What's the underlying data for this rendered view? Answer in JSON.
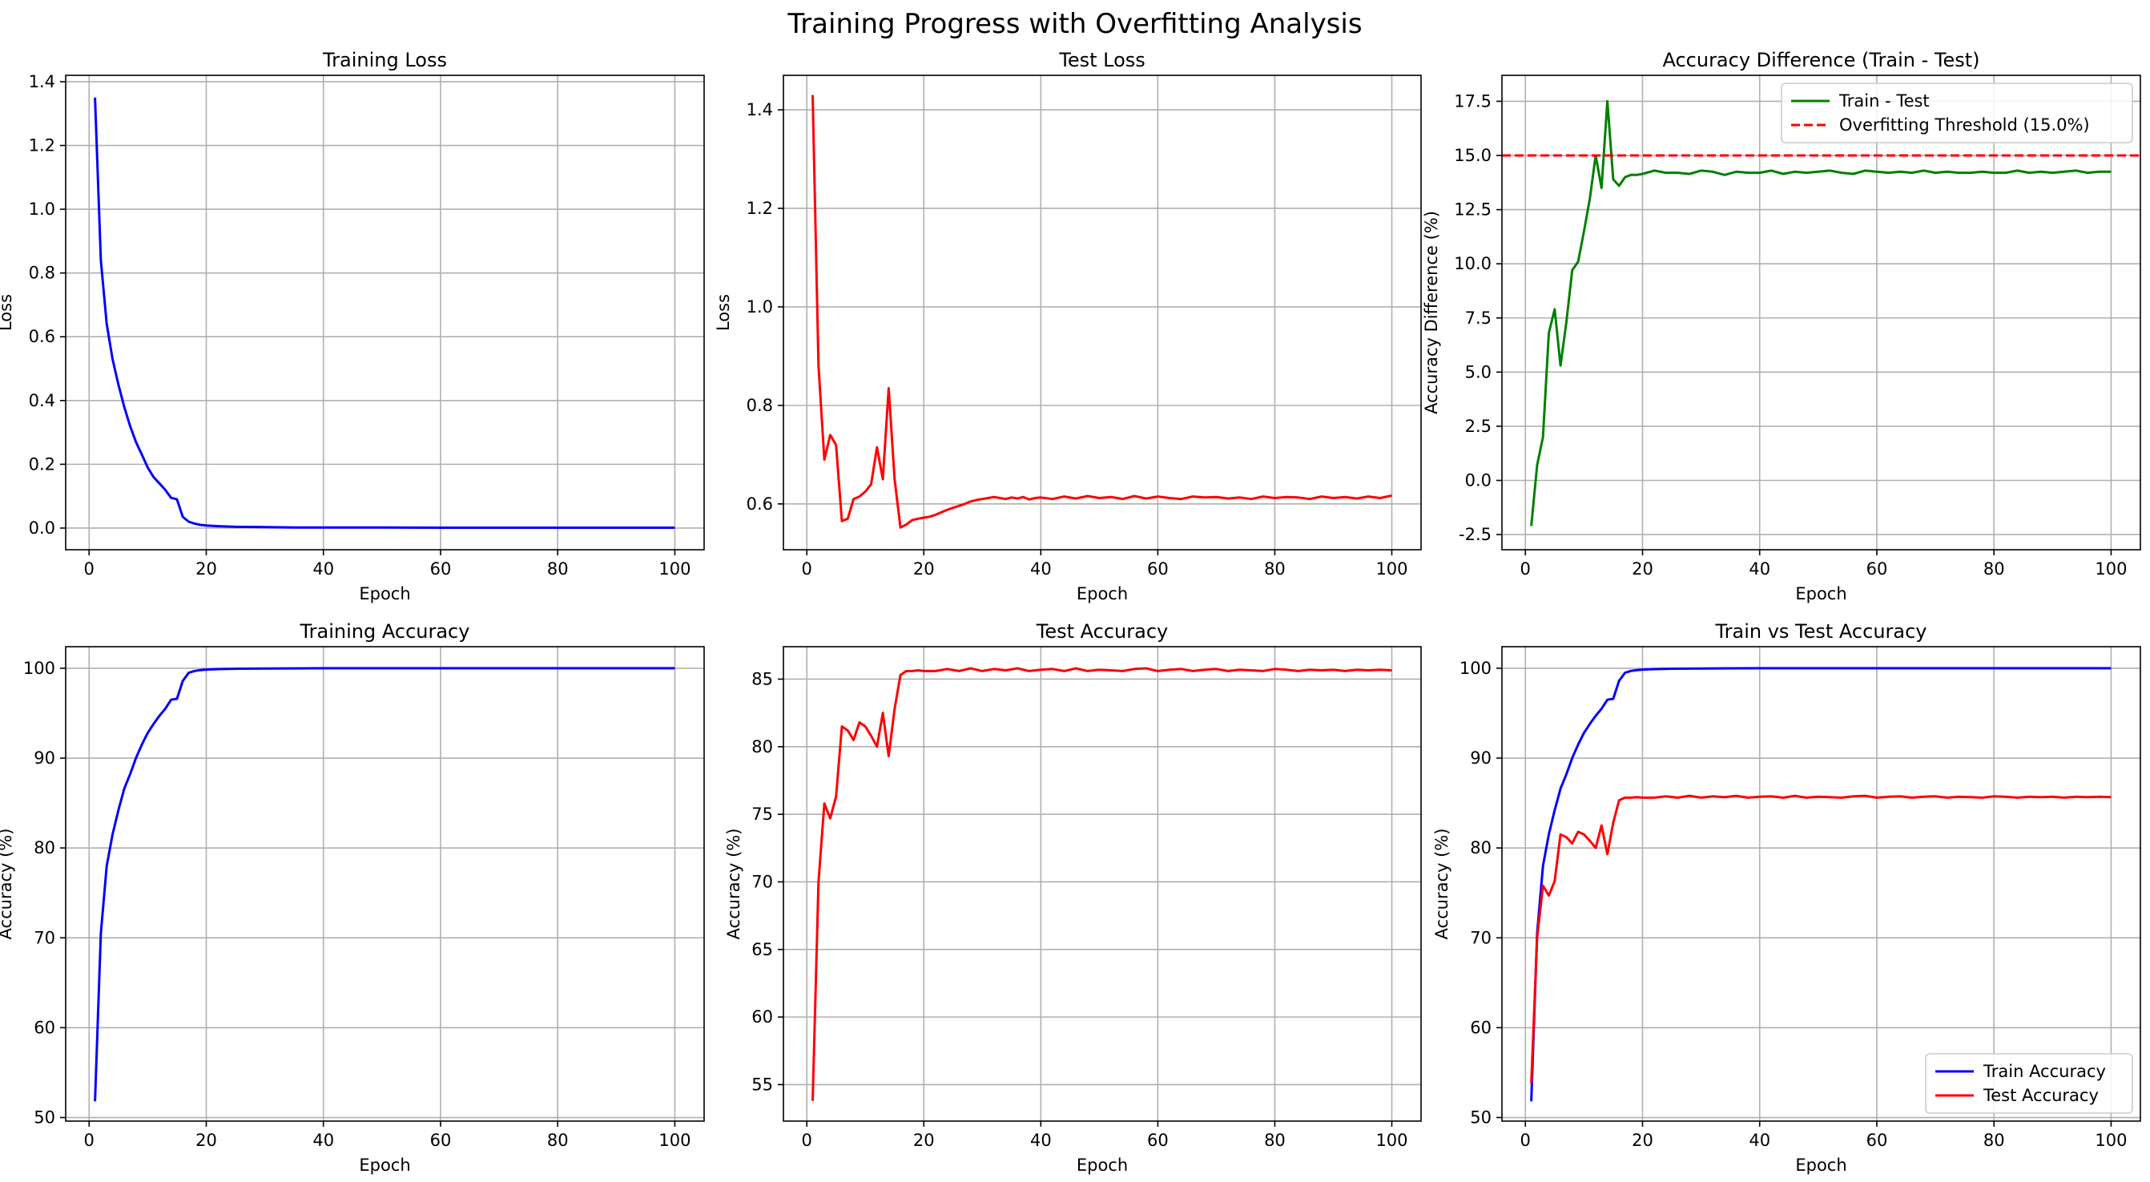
{
  "figure": {
    "title": "Training Progress with Overfitting Analysis"
  },
  "chart_data": [
    {
      "type": "line",
      "title": "Training Loss",
      "xlabel": "Epoch",
      "ylabel": "Loss",
      "xlim": [
        -4,
        105
      ],
      "ylim": [
        -0.068,
        1.42
      ],
      "xticks": [
        0,
        20,
        40,
        60,
        80,
        100
      ],
      "yticks": [
        0.0,
        0.2,
        0.4,
        0.6,
        0.8,
        1.0,
        1.2,
        1.4
      ],
      "ytick_decimals": 1,
      "grid": true,
      "legend": null,
      "series": [
        {
          "color": "#0000ff",
          "dashed": false,
          "x": [
            1,
            2,
            3,
            4,
            5,
            6,
            7,
            8,
            9,
            10,
            11,
            12,
            13,
            14,
            15,
            16,
            17,
            18,
            19,
            20,
            22,
            25,
            30,
            35,
            40,
            50,
            60,
            70,
            80,
            90,
            100
          ],
          "y": [
            1.35,
            0.84,
            0.64,
            0.53,
            0.45,
            0.38,
            0.32,
            0.27,
            0.23,
            0.19,
            0.16,
            0.14,
            0.12,
            0.095,
            0.09,
            0.035,
            0.02,
            0.014,
            0.01,
            0.008,
            0.006,
            0.004,
            0.003,
            0.002,
            0.002,
            0.002,
            0.001,
            0.001,
            0.001,
            0.001,
            0.001
          ]
        }
      ]
    },
    {
      "type": "line",
      "title": "Test Loss",
      "xlabel": "Epoch",
      "ylabel": "Loss",
      "xlim": [
        -4,
        105
      ],
      "ylim": [
        0.507,
        1.47
      ],
      "xticks": [
        0,
        20,
        40,
        60,
        80,
        100
      ],
      "yticks": [
        0.6,
        0.8,
        1.0,
        1.2,
        1.4
      ],
      "ytick_decimals": 1,
      "grid": true,
      "legend": null,
      "series": [
        {
          "color": "#ff0000",
          "dashed": false,
          "x": [
            1,
            2,
            3,
            4,
            5,
            6,
            7,
            8,
            9,
            10,
            11,
            12,
            13,
            14,
            15,
            16,
            17,
            18,
            19,
            20,
            21,
            22,
            23,
            24,
            25,
            26,
            27,
            28,
            29,
            30,
            31,
            32,
            33,
            34,
            35,
            36,
            37,
            38,
            39,
            40,
            42,
            44,
            46,
            48,
            50,
            52,
            54,
            56,
            58,
            60,
            62,
            64,
            66,
            68,
            70,
            72,
            74,
            76,
            78,
            80,
            82,
            84,
            86,
            88,
            90,
            92,
            94,
            96,
            98,
            100
          ],
          "y": [
            1.43,
            0.88,
            0.69,
            0.74,
            0.72,
            0.565,
            0.57,
            0.61,
            0.615,
            0.625,
            0.64,
            0.715,
            0.65,
            0.835,
            0.65,
            0.552,
            0.558,
            0.567,
            0.57,
            0.572,
            0.574,
            0.578,
            0.583,
            0.588,
            0.592,
            0.596,
            0.6,
            0.605,
            0.608,
            0.61,
            0.612,
            0.614,
            0.612,
            0.61,
            0.613,
            0.611,
            0.614,
            0.609,
            0.612,
            0.613,
            0.61,
            0.615,
            0.611,
            0.616,
            0.612,
            0.614,
            0.61,
            0.616,
            0.611,
            0.615,
            0.612,
            0.61,
            0.615,
            0.613,
            0.614,
            0.611,
            0.613,
            0.61,
            0.615,
            0.612,
            0.614,
            0.613,
            0.61,
            0.615,
            0.612,
            0.614,
            0.611,
            0.615,
            0.612,
            0.617
          ]
        }
      ]
    },
    {
      "type": "line",
      "title": "Accuracy Difference (Train - Test)",
      "xlabel": "Epoch",
      "ylabel": "Accuracy Difference (%)",
      "xlim": [
        -4,
        105
      ],
      "ylim": [
        -3.2,
        18.7
      ],
      "xticks": [
        0,
        20,
        40,
        60,
        80,
        100
      ],
      "yticks": [
        -2.5,
        0.0,
        2.5,
        5.0,
        7.5,
        10.0,
        12.5,
        15.0,
        17.5
      ],
      "ytick_decimals": 1,
      "grid": true,
      "legend": {
        "placement": "top-right",
        "entries": [
          "Train - Test",
          "Overfitting Threshold (15.0%)"
        ]
      },
      "series": [
        {
          "name": "Train - Test",
          "color": "#008000",
          "dashed": false,
          "x": [
            1,
            2,
            3,
            4,
            5,
            6,
            7,
            8,
            9,
            10,
            11,
            12,
            13,
            14,
            15,
            16,
            17,
            18,
            19,
            20,
            22,
            24,
            26,
            28,
            30,
            32,
            34,
            36,
            38,
            40,
            42,
            44,
            46,
            48,
            50,
            52,
            54,
            56,
            58,
            60,
            62,
            64,
            66,
            68,
            70,
            72,
            74,
            76,
            78,
            80,
            82,
            84,
            86,
            88,
            90,
            92,
            94,
            96,
            98,
            100
          ],
          "y": [
            -2.1,
            0.7,
            2.0,
            6.8,
            7.9,
            5.3,
            7.3,
            9.7,
            10.1,
            11.5,
            13.0,
            15.0,
            13.5,
            17.5,
            13.9,
            13.6,
            14.0,
            14.1,
            14.1,
            14.15,
            14.3,
            14.2,
            14.2,
            14.15,
            14.3,
            14.25,
            14.1,
            14.25,
            14.2,
            14.2,
            14.3,
            14.15,
            14.25,
            14.2,
            14.25,
            14.3,
            14.2,
            14.15,
            14.3,
            14.25,
            14.2,
            14.25,
            14.2,
            14.3,
            14.2,
            14.25,
            14.2,
            14.2,
            14.25,
            14.2,
            14.2,
            14.3,
            14.2,
            14.25,
            14.2,
            14.25,
            14.3,
            14.2,
            14.25,
            14.25
          ]
        },
        {
          "name": "Overfitting Threshold (15.0%)",
          "color": "#ff0000",
          "dashed": true,
          "x": [
            -4,
            105
          ],
          "y": [
            15.0,
            15.0
          ]
        }
      ]
    },
    {
      "type": "line",
      "title": "Training Accuracy",
      "xlabel": "Epoch",
      "ylabel": "Accuracy (%)",
      "xlim": [
        -4,
        105
      ],
      "ylim": [
        49.6,
        102.4
      ],
      "xticks": [
        0,
        20,
        40,
        60,
        80,
        100
      ],
      "yticks": [
        50,
        60,
        70,
        80,
        90,
        100
      ],
      "ytick_decimals": 0,
      "grid": true,
      "legend": null,
      "series": [
        {
          "color": "#0000ff",
          "dashed": false,
          "x": [
            1,
            2,
            3,
            4,
            5,
            6,
            7,
            8,
            9,
            10,
            11,
            12,
            13,
            14,
            15,
            16,
            17,
            18,
            19,
            20,
            22,
            25,
            30,
            40,
            50,
            60,
            70,
            80,
            90,
            100
          ],
          "y": [
            51.8,
            70.5,
            78.0,
            81.5,
            84.2,
            86.6,
            88.2,
            90.0,
            91.5,
            92.8,
            93.8,
            94.7,
            95.5,
            96.5,
            96.6,
            98.6,
            99.5,
            99.7,
            99.8,
            99.85,
            99.9,
            99.95,
            99.97,
            100,
            100,
            100,
            100,
            100,
            100,
            100
          ]
        }
      ]
    },
    {
      "type": "line",
      "title": "Test Accuracy",
      "xlabel": "Epoch",
      "ylabel": "Accuracy (%)",
      "xlim": [
        -4,
        105
      ],
      "ylim": [
        52.3,
        87.4
      ],
      "xticks": [
        0,
        20,
        40,
        60,
        80,
        100
      ],
      "yticks": [
        55,
        60,
        65,
        70,
        75,
        80,
        85
      ],
      "ytick_decimals": 0,
      "grid": true,
      "legend": null,
      "series": [
        {
          "color": "#ff0000",
          "dashed": false,
          "x": [
            1,
            2,
            3,
            4,
            5,
            6,
            7,
            8,
            9,
            10,
            11,
            12,
            13,
            14,
            15,
            16,
            17,
            18,
            19,
            20,
            22,
            24,
            26,
            28,
            30,
            32,
            34,
            36,
            38,
            40,
            42,
            44,
            46,
            48,
            50,
            52,
            54,
            56,
            58,
            60,
            62,
            64,
            66,
            68,
            70,
            72,
            74,
            76,
            78,
            80,
            82,
            84,
            86,
            88,
            90,
            92,
            94,
            96,
            98,
            100
          ],
          "y": [
            53.8,
            70.0,
            75.8,
            74.7,
            76.3,
            81.5,
            81.2,
            80.5,
            81.8,
            81.5,
            80.8,
            80.0,
            82.5,
            79.3,
            82.8,
            85.3,
            85.6,
            85.6,
            85.65,
            85.6,
            85.6,
            85.75,
            85.6,
            85.8,
            85.6,
            85.75,
            85.65,
            85.8,
            85.6,
            85.7,
            85.75,
            85.6,
            85.8,
            85.6,
            85.7,
            85.65,
            85.6,
            85.75,
            85.8,
            85.6,
            85.7,
            85.75,
            85.6,
            85.7,
            85.75,
            85.6,
            85.7,
            85.65,
            85.6,
            85.75,
            85.7,
            85.6,
            85.7,
            85.65,
            85.7,
            85.6,
            85.7,
            85.65,
            85.7,
            85.65
          ]
        }
      ]
    },
    {
      "type": "line",
      "title": "Train vs Test Accuracy",
      "xlabel": "Epoch",
      "ylabel": "Accuracy (%)",
      "xlim": [
        -4,
        105
      ],
      "ylim": [
        49.6,
        102.4
      ],
      "xticks": [
        0,
        20,
        40,
        60,
        80,
        100
      ],
      "yticks": [
        50,
        60,
        70,
        80,
        90,
        100
      ],
      "ytick_decimals": 0,
      "grid": true,
      "legend": {
        "placement": "bottom-right",
        "entries": [
          "Train Accuracy",
          "Test Accuracy"
        ]
      },
      "series": [
        {
          "name": "Train Accuracy",
          "color": "#0000ff",
          "dashed": false,
          "x": [
            1,
            2,
            3,
            4,
            5,
            6,
            7,
            8,
            9,
            10,
            11,
            12,
            13,
            14,
            15,
            16,
            17,
            18,
            19,
            20,
            22,
            25,
            30,
            40,
            50,
            60,
            70,
            80,
            90,
            100
          ],
          "y": [
            51.8,
            70.5,
            78.0,
            81.5,
            84.2,
            86.6,
            88.2,
            90.0,
            91.5,
            92.8,
            93.8,
            94.7,
            95.5,
            96.5,
            96.6,
            98.6,
            99.5,
            99.7,
            99.8,
            99.85,
            99.9,
            99.95,
            99.97,
            100,
            100,
            100,
            100,
            100,
            100,
            100
          ]
        },
        {
          "name": "Test Accuracy",
          "color": "#ff0000",
          "dashed": false,
          "x": [
            1,
            2,
            3,
            4,
            5,
            6,
            7,
            8,
            9,
            10,
            11,
            12,
            13,
            14,
            15,
            16,
            17,
            18,
            19,
            20,
            22,
            24,
            26,
            28,
            30,
            32,
            34,
            36,
            38,
            40,
            42,
            44,
            46,
            48,
            50,
            52,
            54,
            56,
            58,
            60,
            62,
            64,
            66,
            68,
            70,
            72,
            74,
            76,
            78,
            80,
            82,
            84,
            86,
            88,
            90,
            92,
            94,
            96,
            98,
            100
          ],
          "y": [
            53.8,
            70.0,
            75.8,
            74.7,
            76.3,
            81.5,
            81.2,
            80.5,
            81.8,
            81.5,
            80.8,
            80.0,
            82.5,
            79.3,
            82.8,
            85.3,
            85.6,
            85.6,
            85.65,
            85.6,
            85.6,
            85.75,
            85.6,
            85.8,
            85.6,
            85.75,
            85.65,
            85.8,
            85.6,
            85.7,
            85.75,
            85.6,
            85.8,
            85.6,
            85.7,
            85.65,
            85.6,
            85.75,
            85.8,
            85.6,
            85.7,
            85.75,
            85.6,
            85.7,
            85.75,
            85.6,
            85.7,
            85.65,
            85.6,
            85.75,
            85.7,
            85.6,
            85.7,
            85.65,
            85.7,
            85.6,
            85.7,
            85.65,
            85.7,
            85.65
          ]
        }
      ]
    }
  ]
}
